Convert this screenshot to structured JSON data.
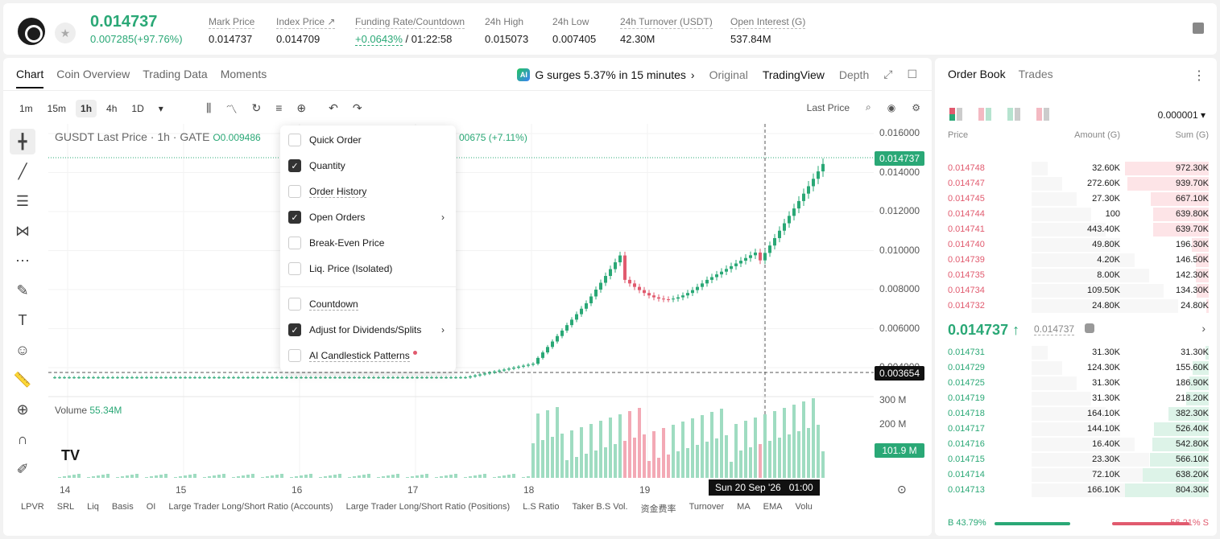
{
  "header": {
    "last_price": "0.014737",
    "change": "0.007285(+97.76%)",
    "stats": [
      {
        "label": "Mark Price",
        "value": "0.014737"
      },
      {
        "label": "Index Price ↗",
        "value": "0.014709"
      },
      {
        "label": "Funding Rate/Countdown",
        "value_a": "+0.0643%",
        "value_b": "/ 01:22:58"
      },
      {
        "label": "24h High",
        "value": "0.015073"
      },
      {
        "label": "24h Low",
        "value": "0.007405"
      },
      {
        "label": "24h Turnover (USDT)",
        "value": "42.30M"
      },
      {
        "label": "Open Interest (G)",
        "value": "537.84M"
      }
    ]
  },
  "chart_tabs": [
    "Chart",
    "Coin Overview",
    "Trading Data",
    "Moments"
  ],
  "ai_news": "G surges 5.37% in 15 minutes",
  "ai_badge": "AI",
  "view_tabs": [
    "Original",
    "TradingView",
    "Depth"
  ],
  "intervals": [
    "1m",
    "15m",
    "1h",
    "4h",
    "1D"
  ],
  "price_type": "Last Price",
  "symbol_line": "GUSDT Last Price · 1h · GATE",
  "ohlc_open": "O0.009486",
  "ohlc_change": "00675 (+7.11%)",
  "volume_label": "Volume",
  "volume_value": "55.34M",
  "y_ticks": [
    "0.016000",
    "0.014000",
    "0.012000",
    "0.010000",
    "0.008000",
    "0.006000",
    "0.004000"
  ],
  "price_tag": "0.014737",
  "cross_tag": "0.003654",
  "vol_ticks": [
    "300 M",
    "200 M"
  ],
  "vol_tag": "101.9 M",
  "x_ticks": [
    "14",
    "15",
    "16",
    "17",
    "18",
    "19"
  ],
  "crosshair_time": "Sun 20 Sep '26   01:00",
  "bottom_tabs": [
    "LPVR",
    "SRL",
    "Liq",
    "Basis",
    "OI",
    "Large Trader Long/Short Ratio (Accounts)",
    "Large Trader Long/Short Ratio (Positions)",
    "L.S Ratio",
    "Taker B.S Vol.",
    "资金费率",
    "Turnover",
    "MA",
    "EMA",
    "Volu"
  ],
  "menu": [
    {
      "label": "Quick Order",
      "checked": false
    },
    {
      "label": "Quantity",
      "checked": true
    },
    {
      "label": "Order History",
      "checked": false
    },
    {
      "label": "Open Orders",
      "checked": true,
      "sub": true
    },
    {
      "label": "Break-Even Price",
      "checked": false
    },
    {
      "label": "Liq. Price (Isolated)",
      "checked": false
    },
    {
      "label": "Countdown",
      "checked": false
    },
    {
      "label": "Adjust for Dividends/Splits",
      "checked": true,
      "sub": true
    },
    {
      "label": "AI Candlestick Patterns",
      "checked": false
    }
  ],
  "orderbook": {
    "tabs": [
      "Order Book",
      "Trades"
    ],
    "precision": "0.000001",
    "cols": [
      "Price",
      "Amount (G)",
      "Sum (G)"
    ],
    "asks": [
      [
        "0.014748",
        "32.60K",
        "972.30K",
        1.0
      ],
      [
        "0.014747",
        "272.60K",
        "939.70K",
        0.97
      ],
      [
        "0.014745",
        "27.30K",
        "667.10K",
        0.69
      ],
      [
        "0.014744",
        "100",
        "639.80K",
        0.66
      ],
      [
        "0.014741",
        "443.40K",
        "639.70K",
        0.66
      ],
      [
        "0.014740",
        "49.80K",
        "196.30K",
        0.2
      ],
      [
        "0.014739",
        "4.20K",
        "146.50K",
        0.15
      ],
      [
        "0.014735",
        "8.00K",
        "142.30K",
        0.15
      ],
      [
        "0.014734",
        "109.50K",
        "134.30K",
        0.14
      ],
      [
        "0.014732",
        "24.80K",
        "24.80K",
        0.03
      ]
    ],
    "last": "0.014737",
    "mark": "0.014737",
    "bids": [
      [
        "0.014731",
        "31.30K",
        "31.30K",
        0.04
      ],
      [
        "0.014729",
        "124.30K",
        "155.60K",
        0.19
      ],
      [
        "0.014725",
        "31.30K",
        "186.90K",
        0.23
      ],
      [
        "0.014719",
        "31.30K",
        "218.20K",
        0.27
      ],
      [
        "0.014718",
        "164.10K",
        "382.30K",
        0.48
      ],
      [
        "0.014717",
        "144.10K",
        "526.40K",
        0.65
      ],
      [
        "0.014716",
        "16.40K",
        "542.80K",
        0.67
      ],
      [
        "0.014715",
        "23.30K",
        "566.10K",
        0.7
      ],
      [
        "0.014714",
        "72.10K",
        "638.20K",
        0.79
      ],
      [
        "0.014713",
        "166.10K",
        "804.30K",
        1.0
      ]
    ],
    "buy_ratio": "B 43.79%",
    "sell_ratio": "56.21% S",
    "buy_fraction": 0.4379
  }
}
